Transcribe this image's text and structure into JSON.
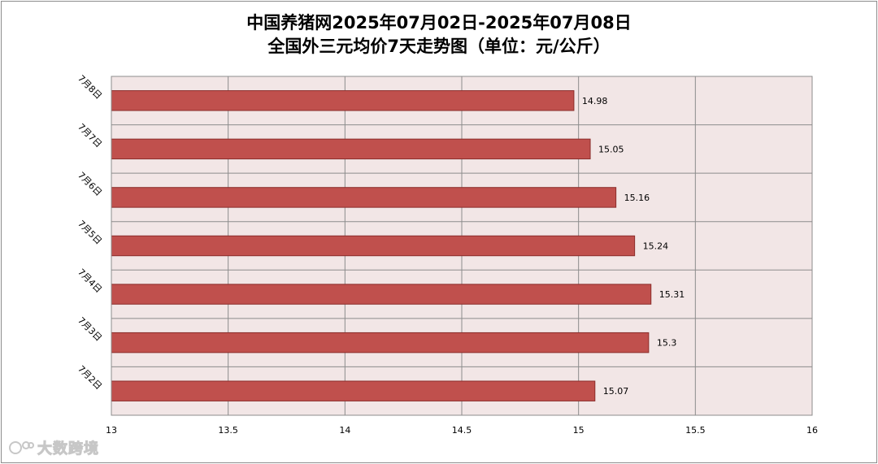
{
  "chart_data": {
    "type": "bar",
    "orientation": "horizontal",
    "title": "中国养猪网2025年07月02日-2025年07月08日",
    "subtitle": "全国外三元均价7天走势图（单位：元/公斤）",
    "categories": [
      "7月8日",
      "7月7日",
      "7月6日",
      "7月5日",
      "7月4日",
      "7月3日",
      "7月2日"
    ],
    "values": [
      14.98,
      15.05,
      15.16,
      15.24,
      15.31,
      15.3,
      15.07
    ],
    "data_labels": [
      "14.98",
      "15.05",
      "15.16",
      "15.24",
      "15.31",
      "15.3",
      "15.07"
    ],
    "xlim": [
      13,
      16
    ],
    "xticks": [
      "13",
      "13.5",
      "14",
      "14.5",
      "15",
      "15.5",
      "16"
    ],
    "grid": true,
    "bar_color": "#c0504d",
    "bar_edge_color": "#8b2d2b",
    "plot_background": "#f2e6e6"
  },
  "watermark": {
    "icon": "logo-icon",
    "text": "大数跨境"
  }
}
